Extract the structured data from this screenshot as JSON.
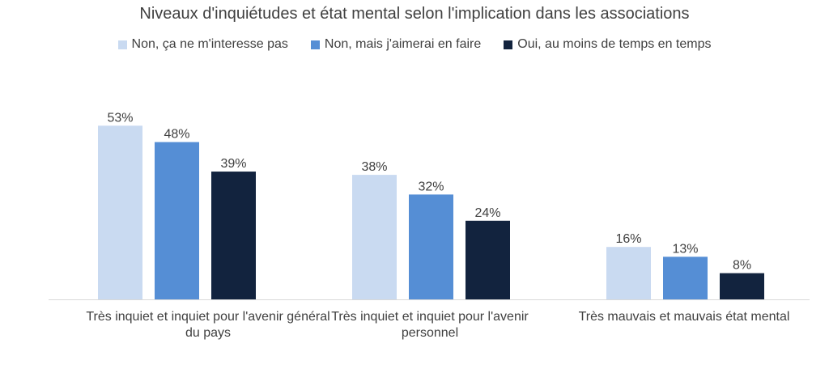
{
  "chart_data": {
    "type": "bar",
    "title": "Niveaux d'inquiétudes et état mental selon l'implication dans les associations",
    "categories": [
      "Très inquiet et inquiet pour l'avenir général du pays",
      "Très inquiet et inquiet pour l'avenir personnel",
      "Très mauvais et mauvais état mental"
    ],
    "series": [
      {
        "name": "Non, ça ne m'interesse pas",
        "color": "#c9daf1",
        "values": [
          53,
          38,
          16
        ],
        "labels": [
          "53%",
          "38%",
          "16%"
        ]
      },
      {
        "name": "Non, mais j'aimerai en faire",
        "color": "#558ed5",
        "values": [
          48,
          32,
          13
        ],
        "labels": [
          "48%",
          "32%",
          "13%"
        ]
      },
      {
        "name": "Oui, au moins de temps en temps",
        "color": "#12233e",
        "values": [
          39,
          24,
          8
        ],
        "labels": [
          "39%",
          "24%",
          "8%"
        ]
      }
    ],
    "ylim": [
      0,
      60
    ],
    "grid": false,
    "legend_position": "top"
  }
}
